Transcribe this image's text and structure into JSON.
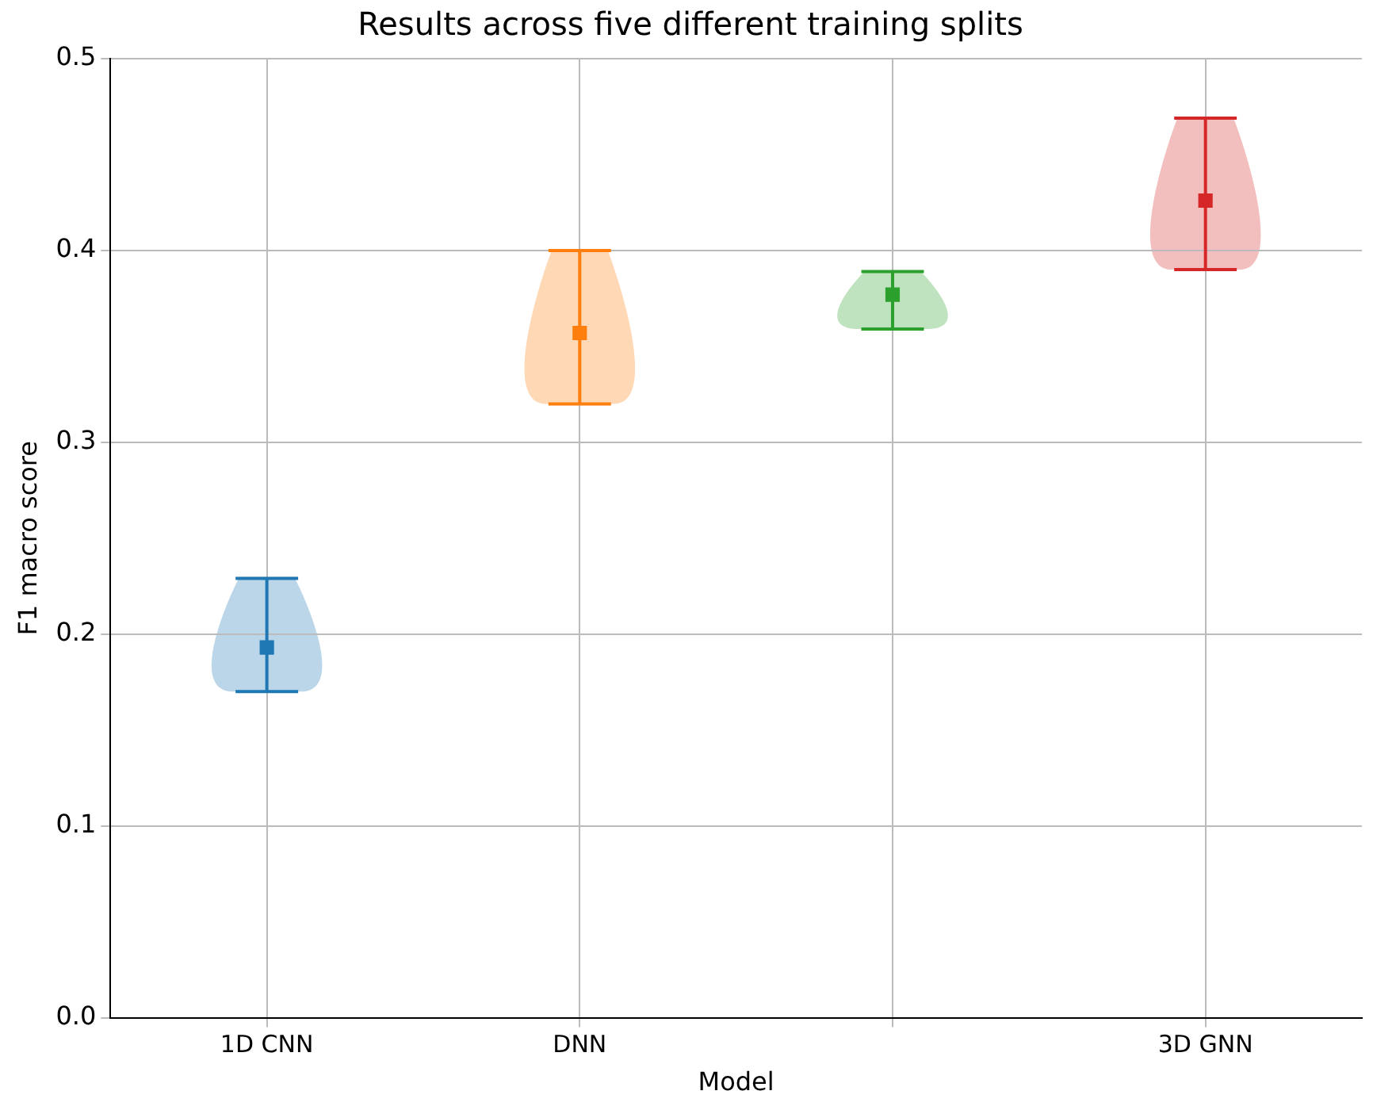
{
  "chart_data": {
    "type": "scatter",
    "title": "Results across five different training splits",
    "xlabel": "Model",
    "ylabel": "F1 macro score",
    "categories": [
      "1D CNN",
      "DNN",
      null,
      "3D GNN"
    ],
    "values": [
      0.193,
      0.357,
      0.377,
      0.426
    ],
    "errors": [
      [
        0.17,
        0.229
      ],
      [
        0.32,
        0.4
      ],
      [
        0.359,
        0.389
      ],
      [
        0.39,
        0.469
      ]
    ],
    "colors": [
      "#1f77b4",
      "#ff7f0e",
      "#2ca02c",
      "#d62728"
    ],
    "ylim": [
      0,
      0.5
    ],
    "yticks": [
      {
        "value": 0,
        "label": "0.0"
      },
      0.1,
      0.2,
      0.3,
      0.4,
      0.5
    ],
    "grid": true,
    "legend": false,
    "marker": "square"
  }
}
